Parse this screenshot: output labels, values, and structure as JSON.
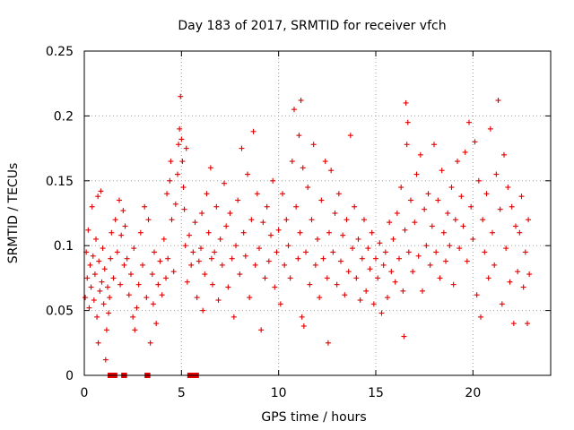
{
  "chart_data": {
    "type": "scatter",
    "title": "Day 183 of 2017, SRMTID for receiver vfch",
    "xlabel": "GPS time / hours",
    "ylabel": "SRMTID / TECUs",
    "xlim": [
      0,
      24
    ],
    "ylim": [
      0,
      0.25
    ],
    "xticks": [
      0,
      5,
      10,
      15,
      20
    ],
    "xtick_labels": [
      "0",
      "5",
      "10",
      "15",
      "20"
    ],
    "yticks": [
      0,
      0.05,
      0.1,
      0.15,
      0.2,
      0.25
    ],
    "ytick_labels": [
      "0",
      "0.05",
      "0.1",
      "0.15",
      "0.2",
      "0.25"
    ],
    "grid": true,
    "marker": "+",
    "color": "#e00000",
    "series": [
      {
        "name": "SRMTID",
        "points": [
          [
            0.05,
            0.06
          ],
          [
            0.1,
            0.095
          ],
          [
            0.15,
            0.075
          ],
          [
            0.2,
            0.112
          ],
          [
            0.25,
            0.052
          ],
          [
            0.3,
            0.085
          ],
          [
            0.35,
            0.068
          ],
          [
            0.4,
            0.13
          ],
          [
            0.45,
            0.092
          ],
          [
            0.5,
            0.058
          ],
          [
            0.55,
            0.078
          ],
          [
            0.6,
            0.105
          ],
          [
            0.65,
            0.045
          ],
          [
            0.7,
            0.138
          ],
          [
            0.72,
            0.025
          ],
          [
            0.75,
            0.088
          ],
          [
            0.8,
            0.065
          ],
          [
            0.85,
            0.142
          ],
          [
            0.9,
            0.072
          ],
          [
            0.95,
            0.098
          ],
          [
            1.0,
            0.055
          ],
          [
            1.05,
            0.082
          ],
          [
            1.1,
            0.012
          ],
          [
            1.15,
            0.035
          ],
          [
            1.2,
            0.068
          ],
          [
            1.25,
            0.048
          ],
          [
            1.3,
            0.06
          ],
          [
            1.35,
            0.09
          ],
          [
            1.4,
            0.11
          ],
          [
            1.5,
            0.075
          ],
          [
            1.6,
            0.12
          ],
          [
            1.7,
            0.095
          ],
          [
            1.8,
            0.135
          ],
          [
            1.85,
            0.07
          ],
          [
            1.9,
            0.108
          ],
          [
            2.0,
            0.127
          ],
          [
            2.05,
            0.085
          ],
          [
            2.1,
            0.115
          ],
          [
            2.2,
            0.09
          ],
          [
            2.3,
            0.062
          ],
          [
            2.4,
            0.078
          ],
          [
            2.5,
            0.045
          ],
          [
            2.55,
            0.098
          ],
          [
            2.6,
            0.035
          ],
          [
            2.7,
            0.052
          ],
          [
            2.8,
            0.07
          ],
          [
            2.9,
            0.11
          ],
          [
            3.0,
            0.085
          ],
          [
            3.1,
            0.13
          ],
          [
            3.2,
            0.06
          ],
          [
            3.3,
            0.12
          ],
          [
            3.4,
            0.025
          ],
          [
            3.5,
            0.078
          ],
          [
            3.55,
            0.055
          ],
          [
            3.6,
            0.095
          ],
          [
            3.7,
            0.04
          ],
          [
            3.8,
            0.07
          ],
          [
            3.9,
            0.088
          ],
          [
            4.0,
            0.062
          ],
          [
            4.1,
            0.105
          ],
          [
            4.2,
            0.075
          ],
          [
            4.25,
            0.14
          ],
          [
            4.3,
            0.09
          ],
          [
            4.4,
            0.15
          ],
          [
            4.45,
            0.165
          ],
          [
            4.5,
            0.12
          ],
          [
            4.6,
            0.08
          ],
          [
            4.7,
            0.132
          ],
          [
            4.8,
            0.155
          ],
          [
            4.85,
            0.178
          ],
          [
            4.9,
            0.19
          ],
          [
            4.95,
            0.215
          ],
          [
            5.0,
            0.182
          ],
          [
            5.05,
            0.165
          ],
          [
            5.1,
            0.145
          ],
          [
            5.15,
            0.128
          ],
          [
            5.2,
            0.1
          ],
          [
            5.25,
            0.175
          ],
          [
            5.3,
            0.072
          ],
          [
            5.4,
            0.108
          ],
          [
            5.5,
            0.085
          ],
          [
            5.6,
            0.095
          ],
          [
            5.7,
            0.118
          ],
          [
            5.8,
            0.06
          ],
          [
            5.9,
            0.088
          ],
          [
            6.0,
            0.098
          ],
          [
            6.05,
            0.125
          ],
          [
            6.1,
            0.05
          ],
          [
            6.2,
            0.078
          ],
          [
            6.3,
            0.14
          ],
          [
            6.4,
            0.11
          ],
          [
            6.5,
            0.16
          ],
          [
            6.55,
            0.09
          ],
          [
            6.6,
            0.07
          ],
          [
            6.7,
            0.095
          ],
          [
            6.8,
            0.13
          ],
          [
            6.9,
            0.058
          ],
          [
            7.0,
            0.105
          ],
          [
            7.1,
            0.085
          ],
          [
            7.2,
            0.148
          ],
          [
            7.3,
            0.115
          ],
          [
            7.4,
            0.068
          ],
          [
            7.5,
            0.125
          ],
          [
            7.6,
            0.09
          ],
          [
            7.7,
            0.045
          ],
          [
            7.8,
            0.1
          ],
          [
            7.9,
            0.135
          ],
          [
            8.0,
            0.078
          ],
          [
            8.1,
            0.175
          ],
          [
            8.2,
            0.11
          ],
          [
            8.3,
            0.092
          ],
          [
            8.4,
            0.155
          ],
          [
            8.5,
            0.06
          ],
          [
            8.6,
            0.12
          ],
          [
            8.7,
            0.188
          ],
          [
            8.8,
            0.085
          ],
          [
            8.9,
            0.14
          ],
          [
            9.0,
            0.098
          ],
          [
            9.1,
            0.035
          ],
          [
            9.2,
            0.118
          ],
          [
            9.3,
            0.075
          ],
          [
            9.4,
            0.13
          ],
          [
            9.5,
            0.088
          ],
          [
            9.6,
            0.108
          ],
          [
            9.7,
            0.15
          ],
          [
            9.8,
            0.068
          ],
          [
            9.9,
            0.095
          ],
          [
            10.0,
            0.112
          ],
          [
            10.1,
            0.055
          ],
          [
            10.2,
            0.14
          ],
          [
            10.3,
            0.085
          ],
          [
            10.4,
            0.12
          ],
          [
            10.5,
            0.1
          ],
          [
            10.6,
            0.075
          ],
          [
            10.7,
            0.165
          ],
          [
            10.8,
            0.205
          ],
          [
            10.9,
            0.13
          ],
          [
            11.0,
            0.09
          ],
          [
            11.05,
            0.185
          ],
          [
            11.1,
            0.11
          ],
          [
            11.15,
            0.212
          ],
          [
            11.2,
            0.045
          ],
          [
            11.25,
            0.16
          ],
          [
            11.3,
            0.038
          ],
          [
            11.4,
            0.095
          ],
          [
            11.5,
            0.145
          ],
          [
            11.6,
            0.07
          ],
          [
            11.7,
            0.12
          ],
          [
            11.8,
            0.178
          ],
          [
            11.9,
            0.085
          ],
          [
            12.0,
            0.105
          ],
          [
            12.1,
            0.06
          ],
          [
            12.2,
            0.135
          ],
          [
            12.3,
            0.09
          ],
          [
            12.4,
            0.165
          ],
          [
            12.5,
            0.075
          ],
          [
            12.55,
            0.025
          ],
          [
            12.6,
            0.11
          ],
          [
            12.7,
            0.158
          ],
          [
            12.8,
            0.095
          ],
          [
            12.9,
            0.125
          ],
          [
            13.0,
            0.07
          ],
          [
            13.1,
            0.14
          ],
          [
            13.2,
            0.088
          ],
          [
            13.3,
            0.108
          ],
          [
            13.4,
            0.062
          ],
          [
            13.5,
            0.12
          ],
          [
            13.6,
            0.08
          ],
          [
            13.7,
            0.185
          ],
          [
            13.8,
            0.098
          ],
          [
            13.9,
            0.13
          ],
          [
            14.0,
            0.075
          ],
          [
            14.1,
            0.105
          ],
          [
            14.2,
            0.058
          ],
          [
            14.3,
            0.09
          ],
          [
            14.4,
            0.12
          ],
          [
            14.5,
            0.065
          ],
          [
            14.6,
            0.098
          ],
          [
            14.7,
            0.082
          ],
          [
            14.8,
            0.11
          ],
          [
            14.9,
            0.055
          ],
          [
            15.0,
            0.09
          ],
          [
            15.1,
            0.075
          ],
          [
            15.2,
            0.102
          ],
          [
            15.3,
            0.048
          ],
          [
            15.4,
            0.085
          ],
          [
            15.5,
            0.095
          ],
          [
            15.6,
            0.06
          ],
          [
            15.7,
            0.118
          ],
          [
            15.8,
            0.08
          ],
          [
            15.9,
            0.105
          ],
          [
            16.0,
            0.072
          ],
          [
            16.1,
            0.125
          ],
          [
            16.2,
            0.09
          ],
          [
            16.3,
            0.145
          ],
          [
            16.4,
            0.065
          ],
          [
            16.45,
            0.03
          ],
          [
            16.5,
            0.112
          ],
          [
            16.55,
            0.21
          ],
          [
            16.6,
            0.178
          ],
          [
            16.65,
            0.195
          ],
          [
            16.7,
            0.095
          ],
          [
            16.8,
            0.135
          ],
          [
            16.9,
            0.08
          ],
          [
            17.0,
            0.118
          ],
          [
            17.1,
            0.155
          ],
          [
            17.2,
            0.092
          ],
          [
            17.3,
            0.17
          ],
          [
            17.4,
            0.065
          ],
          [
            17.5,
            0.128
          ],
          [
            17.6,
            0.1
          ],
          [
            17.7,
            0.14
          ],
          [
            17.8,
            0.085
          ],
          [
            17.9,
            0.115
          ],
          [
            18.0,
            0.178
          ],
          [
            18.1,
            0.095
          ],
          [
            18.2,
            0.135
          ],
          [
            18.3,
            0.075
          ],
          [
            18.4,
            0.158
          ],
          [
            18.5,
            0.11
          ],
          [
            18.6,
            0.088
          ],
          [
            18.7,
            0.125
          ],
          [
            18.8,
            0.1
          ],
          [
            18.9,
            0.145
          ],
          [
            19.0,
            0.07
          ],
          [
            19.1,
            0.12
          ],
          [
            19.2,
            0.165
          ],
          [
            19.3,
            0.098
          ],
          [
            19.4,
            0.138
          ],
          [
            19.5,
            0.115
          ],
          [
            19.6,
            0.172
          ],
          [
            19.7,
            0.088
          ],
          [
            19.8,
            0.195
          ],
          [
            19.9,
            0.13
          ],
          [
            20.0,
            0.105
          ],
          [
            20.1,
            0.18
          ],
          [
            20.2,
            0.062
          ],
          [
            20.3,
            0.15
          ],
          [
            20.4,
            0.045
          ],
          [
            20.5,
            0.12
          ],
          [
            20.6,
            0.095
          ],
          [
            20.7,
            0.14
          ],
          [
            20.8,
            0.075
          ],
          [
            20.9,
            0.19
          ],
          [
            21.0,
            0.11
          ],
          [
            21.1,
            0.085
          ],
          [
            21.2,
            0.155
          ],
          [
            21.3,
            0.212
          ],
          [
            21.4,
            0.128
          ],
          [
            21.5,
            0.055
          ],
          [
            21.6,
            0.17
          ],
          [
            21.7,
            0.098
          ],
          [
            21.8,
            0.145
          ],
          [
            21.9,
            0.072
          ],
          [
            22.0,
            0.13
          ],
          [
            22.1,
            0.04
          ],
          [
            22.2,
            0.115
          ],
          [
            22.3,
            0.08
          ],
          [
            22.4,
            0.11
          ],
          [
            22.5,
            0.138
          ],
          [
            22.6,
            0.068
          ],
          [
            22.7,
            0.095
          ],
          [
            22.8,
            0.04
          ],
          [
            22.85,
            0.12
          ],
          [
            22.9,
            0.078
          ]
        ]
      }
    ],
    "zero_segments": [
      [
        1.2,
        1.7
      ],
      [
        1.9,
        2.2
      ],
      [
        3.1,
        3.4
      ],
      [
        5.3,
        5.9
      ]
    ]
  }
}
